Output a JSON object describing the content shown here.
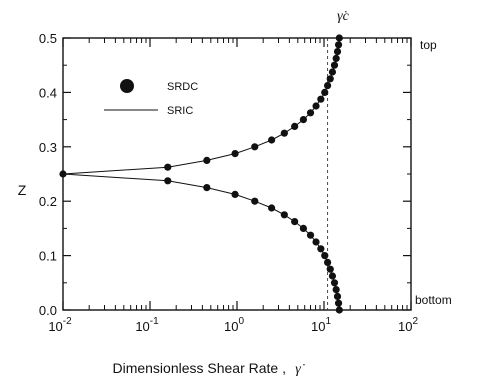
{
  "chart_data": {
    "type": "line",
    "xlabel": "Dimensionless Shear Rate ,",
    "xlabel_symbol": "γ̇",
    "ylabel": "Z",
    "x_scale": "log",
    "xlim": [
      0.01,
      100
    ],
    "ylim": [
      0.0,
      0.5
    ],
    "x_ticks": [
      {
        "value": 0.01,
        "base": "10",
        "exp": "-2"
      },
      {
        "value": 0.1,
        "base": "10",
        "exp": "-1"
      },
      {
        "value": 1,
        "base": "10",
        "exp": "0"
      },
      {
        "value": 10,
        "base": "10",
        "exp": "1"
      },
      {
        "value": 100,
        "base": "10",
        "exp": "2"
      }
    ],
    "y_ticks": [
      "0.0",
      "0.1",
      "0.2",
      "0.3",
      "0.4",
      "0.5"
    ],
    "grid": false,
    "legend_position": "upper-left",
    "reference_line": {
      "x": 11,
      "label": "γ̇c",
      "style": "dashed"
    },
    "side_labels": {
      "top": "top",
      "bottom": "bottom"
    },
    "series": [
      {
        "name": "SRDC",
        "style": "markers",
        "points": [
          [
            0.01,
            0.25
          ],
          [
            0.16,
            0.2375
          ],
          [
            0.45,
            0.225
          ],
          [
            0.95,
            0.2125
          ],
          [
            1.6,
            0.2
          ],
          [
            2.5,
            0.1875
          ],
          [
            3.5,
            0.175
          ],
          [
            4.6,
            0.1625
          ],
          [
            5.8,
            0.15
          ],
          [
            7.0,
            0.1375
          ],
          [
            8.1,
            0.125
          ],
          [
            9.2,
            0.1125
          ],
          [
            10.2,
            0.1
          ],
          [
            11.0,
            0.0875
          ],
          [
            11.8,
            0.075
          ],
          [
            12.5,
            0.0625
          ],
          [
            13.2,
            0.05
          ],
          [
            13.8,
            0.0375
          ],
          [
            14.3,
            0.025
          ],
          [
            14.7,
            0.0125
          ],
          [
            15.0,
            0.0
          ],
          [
            0.16,
            0.2625
          ],
          [
            0.45,
            0.275
          ],
          [
            0.95,
            0.2875
          ],
          [
            1.6,
            0.3
          ],
          [
            2.5,
            0.3125
          ],
          [
            3.5,
            0.325
          ],
          [
            4.6,
            0.3375
          ],
          [
            5.8,
            0.35
          ],
          [
            7.0,
            0.3625
          ],
          [
            8.1,
            0.375
          ],
          [
            9.2,
            0.3875
          ],
          [
            10.2,
            0.4
          ],
          [
            11.0,
            0.4125
          ],
          [
            11.8,
            0.425
          ],
          [
            12.5,
            0.4375
          ],
          [
            13.2,
            0.45
          ],
          [
            13.8,
            0.4625
          ],
          [
            14.3,
            0.475
          ],
          [
            14.7,
            0.4875
          ],
          [
            15.0,
            0.5
          ]
        ]
      },
      {
        "name": "SRIC",
        "style": "line",
        "points": [
          [
            15.0,
            0.0
          ],
          [
            14.7,
            0.0125
          ],
          [
            14.3,
            0.025
          ],
          [
            13.8,
            0.0375
          ],
          [
            13.2,
            0.05
          ],
          [
            12.5,
            0.0625
          ],
          [
            11.8,
            0.075
          ],
          [
            11.0,
            0.0875
          ],
          [
            10.2,
            0.1
          ],
          [
            9.2,
            0.1125
          ],
          [
            8.1,
            0.125
          ],
          [
            7.0,
            0.1375
          ],
          [
            5.8,
            0.15
          ],
          [
            4.6,
            0.1625
          ],
          [
            3.5,
            0.175
          ],
          [
            2.5,
            0.1875
          ],
          [
            1.6,
            0.2
          ],
          [
            0.95,
            0.2125
          ],
          [
            0.45,
            0.225
          ],
          [
            0.16,
            0.2375
          ],
          [
            0.01,
            0.25
          ],
          [
            0.16,
            0.2625
          ],
          [
            0.45,
            0.275
          ],
          [
            0.95,
            0.2875
          ],
          [
            1.6,
            0.3
          ],
          [
            2.5,
            0.3125
          ],
          [
            3.5,
            0.325
          ],
          [
            4.6,
            0.3375
          ],
          [
            5.8,
            0.35
          ],
          [
            7.0,
            0.3625
          ],
          [
            8.1,
            0.375
          ],
          [
            9.2,
            0.3875
          ],
          [
            10.2,
            0.4
          ],
          [
            11.0,
            0.4125
          ],
          [
            11.8,
            0.425
          ],
          [
            12.5,
            0.4375
          ],
          [
            13.2,
            0.45
          ],
          [
            13.8,
            0.4625
          ],
          [
            14.3,
            0.475
          ],
          [
            14.7,
            0.4875
          ],
          [
            15.0,
            0.5
          ]
        ]
      }
    ]
  }
}
